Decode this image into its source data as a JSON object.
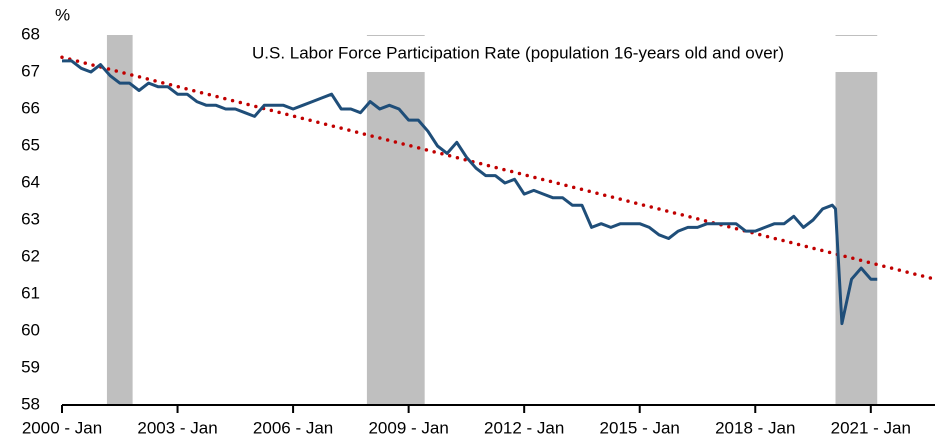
{
  "chart_data": {
    "type": "line",
    "title": "U.S. Labor Force Participation Rate (population 16-years old and over)",
    "y_unit": "%",
    "x": [
      "2000-01",
      "2000-04",
      "2000-07",
      "2000-10",
      "2001-01",
      "2001-04",
      "2001-07",
      "2001-10",
      "2002-01",
      "2002-04",
      "2002-07",
      "2002-10",
      "2003-01",
      "2003-04",
      "2003-07",
      "2003-10",
      "2004-01",
      "2004-04",
      "2004-07",
      "2004-10",
      "2005-01",
      "2005-04",
      "2005-07",
      "2005-10",
      "2006-01",
      "2006-04",
      "2006-07",
      "2006-10",
      "2007-01",
      "2007-04",
      "2007-07",
      "2007-10",
      "2008-01",
      "2008-04",
      "2008-07",
      "2008-10",
      "2009-01",
      "2009-04",
      "2009-07",
      "2009-10",
      "2010-01",
      "2010-04",
      "2010-07",
      "2010-10",
      "2011-01",
      "2011-04",
      "2011-07",
      "2011-10",
      "2012-01",
      "2012-04",
      "2012-07",
      "2012-10",
      "2013-01",
      "2013-04",
      "2013-07",
      "2013-10",
      "2014-01",
      "2014-04",
      "2014-07",
      "2014-10",
      "2015-01",
      "2015-04",
      "2015-07",
      "2015-10",
      "2016-01",
      "2016-04",
      "2016-07",
      "2016-10",
      "2017-01",
      "2017-04",
      "2017-07",
      "2017-10",
      "2018-01",
      "2018-04",
      "2018-07",
      "2018-10",
      "2019-01",
      "2019-04",
      "2019-07",
      "2019-10",
      "2020-01",
      "2020-02",
      "2020-04",
      "2020-07",
      "2020-10",
      "2020-12",
      "2021-01",
      "2021-03"
    ],
    "series": [
      {
        "name": "Labor Force Participation Rate",
        "color": "#1f4e79",
        "values": [
          67.3,
          67.3,
          67.1,
          67.0,
          67.2,
          66.9,
          66.7,
          66.7,
          66.5,
          66.7,
          66.6,
          66.6,
          66.4,
          66.4,
          66.2,
          66.1,
          66.1,
          66.0,
          66.0,
          65.9,
          65.8,
          66.1,
          66.1,
          66.1,
          66.0,
          66.1,
          66.2,
          66.3,
          66.4,
          66.0,
          66.0,
          65.9,
          66.2,
          66.0,
          66.1,
          66.0,
          65.7,
          65.7,
          65.4,
          65.0,
          64.8,
          65.1,
          64.7,
          64.4,
          64.2,
          64.2,
          64.0,
          64.1,
          63.7,
          63.8,
          63.7,
          63.6,
          63.6,
          63.4,
          63.4,
          62.8,
          62.9,
          62.8,
          62.9,
          62.9,
          62.9,
          62.8,
          62.6,
          62.5,
          62.7,
          62.8,
          62.8,
          62.9,
          62.9,
          62.9,
          62.9,
          62.7,
          62.7,
          62.8,
          62.9,
          62.9,
          63.1,
          62.8,
          63.0,
          63.3,
          63.4,
          63.3,
          60.2,
          61.4,
          61.7,
          61.5,
          61.4,
          61.4
        ]
      }
    ],
    "trend": {
      "color": "#c00000",
      "x": [
        "2000-01",
        "2022-09"
      ],
      "values": [
        67.4,
        61.4
      ]
    },
    "shaded": [
      [
        "2001-03",
        "2001-11"
      ],
      [
        "2007-12",
        "2009-06"
      ],
      [
        "2020-02",
        "2021-03"
      ]
    ],
    "shade_color": "#bfbfbf",
    "xlim": [
      "2000-01",
      "2022-09"
    ],
    "xticks": [
      {
        "value": "2000-01",
        "label": "2000 - Jan"
      },
      {
        "value": "2003-01",
        "label": "2003 - Jan"
      },
      {
        "value": "2006-01",
        "label": "2006 - Jan"
      },
      {
        "value": "2009-01",
        "label": "2009 - Jan"
      },
      {
        "value": "2012-01",
        "label": "2012 - Jan"
      },
      {
        "value": "2015-01",
        "label": "2015 - Jan"
      },
      {
        "value": "2018-01",
        "label": "2018 - Jan"
      },
      {
        "value": "2021-01",
        "label": "2021 - Jan"
      }
    ],
    "ylim": [
      58,
      68
    ],
    "yticks": [
      58,
      59,
      60,
      61,
      62,
      63,
      64,
      65,
      66,
      67,
      68
    ],
    "grid": false
  }
}
